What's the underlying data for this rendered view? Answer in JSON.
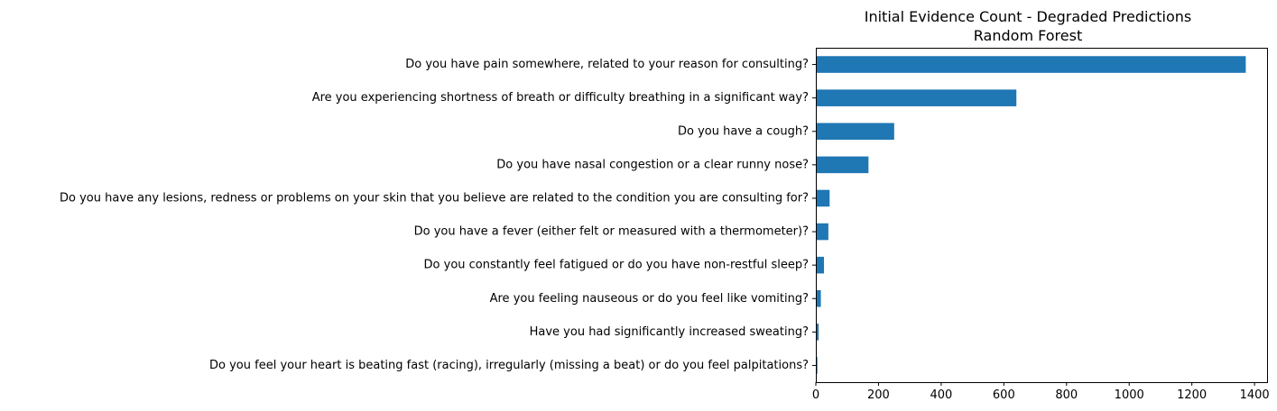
{
  "chart_data": {
    "type": "bar",
    "orientation": "horizontal",
    "title": "Initial Evidence Count - Degraded Predictions",
    "subtitle": "Random Forest",
    "xlabel": "",
    "ylabel": "",
    "categories": [
      "Do you have pain somewhere, related to your reason for consulting?",
      "Are you experiencing shortness of breath or difficulty breathing in a significant way?",
      "Do you have a cough?",
      "Do you have nasal congestion or a clear runny nose?",
      "Do you have any lesions, redness or problems on your skin that you believe are related to the condition you are consulting for?",
      "Do you have a fever (either felt or measured with a thermometer)?",
      "Do you constantly feel fatigued or do you have non-restful sleep?",
      "Are you feeling nauseous or do you feel like vomiting?",
      "Have you had significantly increased sweating?",
      "Do you feel your heart is beating fast (racing), irregularly (missing a beat) or do you feel palpitations?"
    ],
    "values": [
      1372,
      640,
      250,
      168,
      44,
      40,
      26,
      16,
      9,
      5
    ],
    "xlim": [
      0,
      1440
    ],
    "xticks": [
      0,
      200,
      400,
      600,
      800,
      1000,
      1200,
      1400
    ],
    "grid": false,
    "bar_color": "#1f77b4"
  }
}
